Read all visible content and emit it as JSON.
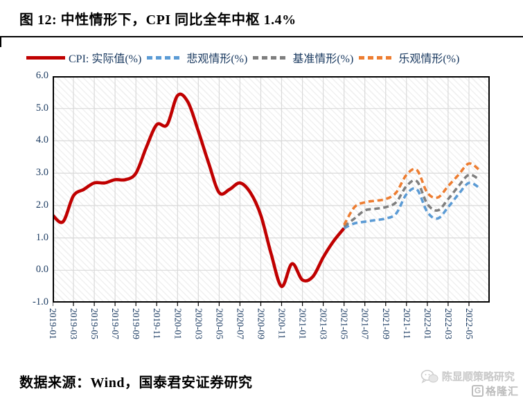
{
  "page": {
    "title": "图 12:  中性情形下，CPI 同比全年中枢 1.4%",
    "footer_source": "数据来源：Wind，国泰君安证券研究",
    "watermark_text": "陈显顺策略研究",
    "watermark_logo_letter": "G",
    "watermark_logo": "格隆汇"
  },
  "colors": {
    "actual": "#C00000",
    "pessimistic": "#5B9BD5",
    "baseline": "#7F7F7F",
    "optimistic": "#ED7D31",
    "axis_text": "#17375E",
    "gridline": "#D9D9D9",
    "plot_border": "#000000"
  },
  "chart_data": {
    "type": "line",
    "title": "图 12: 中性情形下，CPI 同比全年中枢 1.4%",
    "xlabel": "",
    "ylabel": "",
    "ylim": [
      -1.0,
      6.0
    ],
    "grid": true,
    "legend_position": "top",
    "ytick_labels": [
      "6.0",
      "5.0",
      "4.0",
      "3.0",
      "2.0",
      "1.0",
      "0.0",
      "-1.0"
    ],
    "xtick_labels": [
      "2019-01",
      "2019-03",
      "2019-05",
      "2019-07",
      "2019-09",
      "2019-11",
      "2020-01",
      "2020-03",
      "2020-05",
      "2020-07",
      "2020-09",
      "2020-11",
      "2021-01",
      "2021-03",
      "2021-05",
      "2021-07",
      "2021-09",
      "2021-11",
      "2022-01",
      "2022-03",
      "2022-05"
    ],
    "months": [
      "2019-01",
      "2019-02",
      "2019-03",
      "2019-04",
      "2019-05",
      "2019-06",
      "2019-07",
      "2019-08",
      "2019-09",
      "2019-10",
      "2019-11",
      "2019-12",
      "2020-01",
      "2020-02",
      "2020-03",
      "2020-04",
      "2020-05",
      "2020-06",
      "2020-07",
      "2020-08",
      "2020-09",
      "2020-10",
      "2020-11",
      "2020-12",
      "2021-01",
      "2021-02",
      "2021-03",
      "2021-04",
      "2021-05",
      "2021-06",
      "2021-07",
      "2021-08",
      "2021-09",
      "2021-10",
      "2021-11",
      "2021-12",
      "2022-01",
      "2022-02",
      "2022-03",
      "2022-04",
      "2022-05",
      "2022-06"
    ],
    "series": [
      {
        "name": "CPI:  实际值(%)",
        "style": "solid",
        "color": "#C00000",
        "start_month": "2019-01",
        "values": [
          1.7,
          1.5,
          2.3,
          2.5,
          2.7,
          2.7,
          2.8,
          2.8,
          3.0,
          3.8,
          4.5,
          4.5,
          5.4,
          5.2,
          4.3,
          3.3,
          2.4,
          2.5,
          2.7,
          2.4,
          1.7,
          0.5,
          -0.5,
          0.2,
          -0.3,
          -0.2,
          0.4,
          0.9,
          1.3
        ]
      },
      {
        "name": "悲观情形(%)",
        "style": "dashed",
        "color": "#5B9BD5",
        "start_month": "2021-05",
        "values": [
          1.3,
          1.45,
          1.5,
          1.55,
          1.6,
          1.75,
          2.35,
          2.5,
          1.8,
          1.6,
          1.95,
          2.35,
          2.7,
          2.55
        ]
      },
      {
        "name": "基准情形(%)",
        "style": "dashed",
        "color": "#7F7F7F",
        "start_month": "2021-05",
        "values": [
          1.35,
          1.6,
          1.85,
          1.9,
          1.95,
          2.1,
          2.6,
          2.75,
          2.05,
          1.85,
          2.2,
          2.6,
          2.95,
          2.8
        ]
      },
      {
        "name": "乐观情形(%)",
        "style": "dashed",
        "color": "#ED7D31",
        "start_month": "2021-05",
        "values": [
          1.4,
          1.95,
          2.1,
          2.15,
          2.2,
          2.4,
          2.95,
          3.1,
          2.4,
          2.25,
          2.6,
          2.95,
          3.3,
          3.1
        ]
      }
    ]
  }
}
